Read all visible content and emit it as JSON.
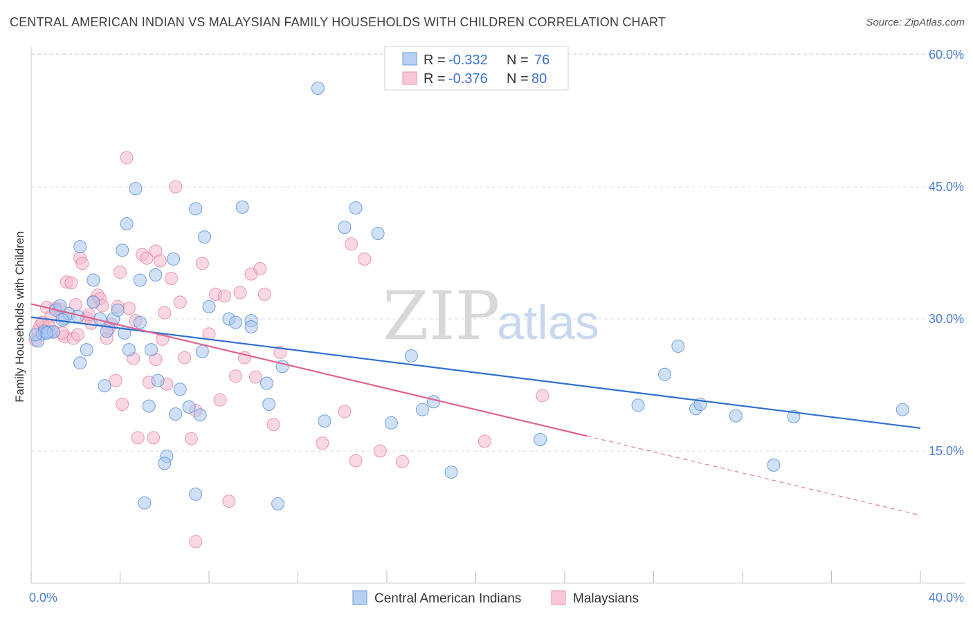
{
  "header": {
    "title": "CENTRAL AMERICAN INDIAN VS MALAYSIAN FAMILY HOUSEHOLDS WITH CHILDREN CORRELATION CHART",
    "source": "Source: ZipAtlas.com"
  },
  "watermark": {
    "part1": "ZIP",
    "part2": "atlas"
  },
  "legend_top": {
    "rows": [
      {
        "r_label": "R =",
        "r_value": "-0.332",
        "n_label": "N =",
        "n_value": "76"
      },
      {
        "r_label": "R =",
        "r_value": "-0.376",
        "n_label": "N =",
        "n_value": "80"
      }
    ]
  },
  "colors": {
    "blue_fill": "#a9c6ee",
    "blue_stroke": "#5b8fd6",
    "blue_line": "#2f6fce",
    "pink_fill": "#f6b8cc",
    "pink_stroke": "#e27fa1",
    "pink_line": "#e0628f",
    "tick_text": "#4a7ed1",
    "grid": "#dddddd"
  },
  "chart_data": {
    "type": "scatter",
    "title": "CENTRAL AMERICAN INDIAN VS MALAYSIAN FAMILY HOUSEHOLDS WITH CHILDREN CORRELATION CHART",
    "xlabel": "",
    "ylabel": "Family Households with Children",
    "xlim": [
      0,
      40
    ],
    "ylim": [
      0,
      61.5
    ],
    "x_tick_labels": [
      "0.0%",
      "40.0%"
    ],
    "y_ticks": [
      15,
      30,
      45,
      60
    ],
    "y_tick_labels": [
      "15.0%",
      "30.0%",
      "45.0%",
      "60.0%"
    ],
    "grid": true,
    "legend_position": "top-center",
    "series": [
      {
        "name": "Central American Indians",
        "color": "#a9c6ee",
        "r": -0.332,
        "n": 76,
        "trend": {
          "x0": 0,
          "y0": 30.2,
          "x1": 40,
          "y1": 17.6,
          "dashed_after": null
        },
        "points": [
          [
            0.3,
            27.5
          ],
          [
            0.5,
            28.3
          ],
          [
            0.6,
            28.6
          ],
          [
            0.8,
            28.5
          ],
          [
            1.0,
            28.5
          ],
          [
            1.1,
            31.0
          ],
          [
            1.5,
            30.0
          ],
          [
            1.7,
            30.6
          ],
          [
            2.1,
            30.3
          ],
          [
            2.2,
            38.2
          ],
          [
            2.8,
            31.9
          ],
          [
            2.8,
            34.4
          ],
          [
            3.4,
            28.6
          ],
          [
            3.7,
            30.0
          ],
          [
            3.9,
            31.0
          ],
          [
            4.1,
            37.8
          ],
          [
            4.2,
            28.4
          ],
          [
            4.3,
            40.8
          ],
          [
            4.4,
            26.5
          ],
          [
            4.7,
            44.8
          ],
          [
            4.9,
            34.4
          ],
          [
            5.4,
            26.5
          ],
          [
            5.6,
            35.0
          ],
          [
            5.7,
            23.0
          ],
          [
            6.4,
            36.8
          ],
          [
            6.7,
            22.0
          ],
          [
            7.1,
            20.0
          ],
          [
            7.4,
            42.5
          ],
          [
            7.7,
            26.3
          ],
          [
            7.8,
            39.3
          ],
          [
            8.0,
            31.4
          ],
          [
            8.9,
            30.0
          ],
          [
            9.2,
            29.6
          ],
          [
            9.5,
            42.7
          ],
          [
            9.9,
            29.8
          ],
          [
            9.9,
            29.1
          ],
          [
            10.6,
            22.7
          ],
          [
            10.7,
            20.3
          ],
          [
            11.3,
            24.6
          ],
          [
            12.9,
            56.2
          ],
          [
            13.2,
            18.4
          ],
          [
            14.1,
            40.4
          ],
          [
            14.6,
            42.6
          ],
          [
            15.6,
            39.7
          ],
          [
            16.2,
            18.2
          ],
          [
            17.1,
            25.8
          ],
          [
            17.6,
            19.7
          ],
          [
            18.1,
            20.6
          ],
          [
            18.9,
            12.6
          ],
          [
            22.9,
            16.3
          ],
          [
            27.3,
            20.2
          ],
          [
            28.5,
            23.7
          ],
          [
            29.1,
            26.9
          ],
          [
            29.9,
            19.8
          ],
          [
            30.1,
            20.3
          ],
          [
            31.7,
            19.0
          ],
          [
            33.4,
            13.4
          ],
          [
            34.3,
            18.9
          ],
          [
            39.2,
            19.7
          ],
          [
            2.5,
            26.5
          ],
          [
            3.3,
            22.4
          ],
          [
            4.9,
            29.6
          ],
          [
            5.3,
            20.1
          ],
          [
            6.1,
            14.4
          ],
          [
            6.5,
            19.2
          ],
          [
            7.4,
            10.1
          ],
          [
            7.6,
            19.1
          ],
          [
            11.1,
            9.0
          ],
          [
            5.1,
            9.1
          ],
          [
            6.0,
            13.6
          ],
          [
            2.2,
            25.0
          ],
          [
            1.4,
            29.9
          ],
          [
            0.7,
            28.4
          ],
          [
            0.2,
            28.2
          ],
          [
            1.3,
            31.5
          ],
          [
            3.1,
            30.0
          ]
        ]
      },
      {
        "name": "Malaysians",
        "color": "#f6b8cc",
        "r": -0.376,
        "n": 80,
        "trend": {
          "x0": 0,
          "y0": 31.7,
          "x1": 40,
          "y1": 7.7,
          "dashed_after": 25.0
        },
        "points": [
          [
            0.2,
            27.6
          ],
          [
            0.3,
            28.6
          ],
          [
            0.4,
            29.2
          ],
          [
            0.6,
            29.0
          ],
          [
            0.7,
            31.3
          ],
          [
            0.9,
            30.3
          ],
          [
            1.1,
            31.2
          ],
          [
            1.3,
            31.1
          ],
          [
            1.5,
            28.0
          ],
          [
            1.6,
            34.2
          ],
          [
            1.8,
            34.1
          ],
          [
            2.0,
            31.6
          ],
          [
            2.2,
            36.9
          ],
          [
            2.3,
            36.3
          ],
          [
            2.5,
            30.1
          ],
          [
            2.7,
            29.5
          ],
          [
            2.8,
            32.0
          ],
          [
            3.0,
            32.7
          ],
          [
            3.1,
            32.3
          ],
          [
            3.2,
            31.5
          ],
          [
            3.4,
            27.8
          ],
          [
            3.6,
            29.4
          ],
          [
            3.8,
            23.0
          ],
          [
            4.0,
            35.3
          ],
          [
            4.1,
            20.3
          ],
          [
            4.3,
            48.3
          ],
          [
            4.4,
            31.2
          ],
          [
            4.6,
            25.5
          ],
          [
            4.8,
            16.5
          ],
          [
            5.0,
            37.3
          ],
          [
            5.2,
            36.9
          ],
          [
            5.3,
            22.8
          ],
          [
            5.5,
            16.5
          ],
          [
            5.6,
            37.7
          ],
          [
            5.8,
            36.6
          ],
          [
            5.9,
            27.7
          ],
          [
            6.1,
            22.6
          ],
          [
            6.3,
            34.6
          ],
          [
            6.5,
            45.0
          ],
          [
            6.7,
            31.9
          ],
          [
            6.9,
            25.6
          ],
          [
            7.2,
            16.4
          ],
          [
            7.4,
            19.6
          ],
          [
            7.7,
            36.3
          ],
          [
            8.0,
            28.3
          ],
          [
            8.3,
            32.8
          ],
          [
            8.5,
            20.8
          ],
          [
            8.7,
            32.6
          ],
          [
            8.9,
            9.3
          ],
          [
            9.2,
            23.5
          ],
          [
            9.4,
            33.0
          ],
          [
            9.6,
            25.6
          ],
          [
            9.9,
            35.1
          ],
          [
            10.1,
            23.4
          ],
          [
            10.3,
            35.7
          ],
          [
            10.5,
            32.8
          ],
          [
            10.9,
            18.0
          ],
          [
            11.2,
            26.2
          ],
          [
            13.1,
            15.9
          ],
          [
            14.1,
            19.5
          ],
          [
            14.4,
            38.5
          ],
          [
            14.6,
            13.9
          ],
          [
            15.0,
            36.8
          ],
          [
            15.7,
            15.0
          ],
          [
            16.7,
            13.8
          ],
          [
            20.4,
            16.1
          ],
          [
            23.0,
            21.3
          ],
          [
            7.4,
            4.7
          ],
          [
            1.9,
            27.8
          ],
          [
            0.5,
            29.6
          ],
          [
            2.6,
            30.5
          ],
          [
            3.5,
            28.9
          ],
          [
            4.7,
            29.8
          ],
          [
            5.6,
            25.4
          ],
          [
            6.0,
            30.7
          ],
          [
            1.0,
            28.6
          ],
          [
            3.9,
            31.4
          ],
          [
            2.1,
            28.2
          ],
          [
            1.4,
            28.4
          ],
          [
            0.8,
            29.2
          ]
        ]
      }
    ]
  },
  "legend_bottom": {
    "items": [
      {
        "label": "Central American Indians"
      },
      {
        "label": "Malaysians"
      }
    ]
  }
}
